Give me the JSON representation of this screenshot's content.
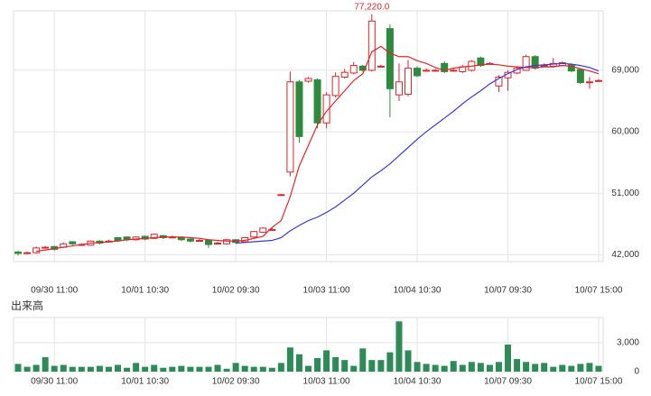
{
  "chart_data": [
    {
      "type": "candlestick",
      "categories": [
        null,
        null,
        null,
        null,
        "09/30 11:00",
        null,
        null,
        null,
        null,
        null,
        null,
        null,
        null,
        null,
        "10/01 10:30",
        null,
        null,
        null,
        null,
        null,
        null,
        null,
        null,
        null,
        "10/02 09:30",
        null,
        null,
        null,
        null,
        null,
        null,
        null,
        null,
        null,
        "10/03 11:00",
        null,
        null,
        null,
        null,
        null,
        null,
        null,
        null,
        null,
        "10/04 10:30",
        null,
        null,
        null,
        null,
        null,
        null,
        null,
        null,
        null,
        "10/07 09:30",
        null,
        null,
        null,
        null,
        null,
        null,
        null,
        null,
        null,
        "10/07 15:00"
      ],
      "open": [
        42400,
        42300,
        42300,
        43000,
        43200,
        43100,
        43900,
        43500,
        43400,
        44000,
        44000,
        44500,
        44600,
        44200,
        44700,
        44400,
        44800,
        44600,
        44500,
        44300,
        44100,
        44100,
        43700,
        43600,
        44200,
        43900,
        44600,
        45300,
        45700,
        50800,
        54100,
        67300,
        67400,
        67600,
        61300,
        65300,
        68000,
        68600,
        69600,
        69000,
        69600,
        75100,
        65400,
        65500,
        69300,
        69000,
        69000,
        70000,
        69000,
        68800,
        69000,
        70800,
        70000,
        66700,
        67900,
        68600,
        69000,
        71000,
        69700,
        69600,
        69700,
        69800,
        69100,
        67300,
        67500
      ],
      "high": [
        42600,
        42500,
        43200,
        43300,
        43300,
        43800,
        44000,
        43700,
        44100,
        44100,
        44200,
        44600,
        44700,
        44700,
        44800,
        45100,
        44900,
        44800,
        44600,
        44400,
        44300,
        44200,
        43900,
        44300,
        44300,
        44600,
        45500,
        46000,
        45900,
        50900,
        68800,
        67600,
        68000,
        67800,
        65800,
        68700,
        69200,
        70200,
        69800,
        77220,
        69800,
        75700,
        70000,
        70500,
        69600,
        69300,
        69200,
        70300,
        69200,
        69800,
        70500,
        71000,
        70200,
        68300,
        69000,
        69600,
        71300,
        71200,
        70000,
        70800,
        70300,
        70000,
        69300,
        68000,
        67700
      ],
      "low": [
        41900,
        42100,
        42200,
        42900,
        42600,
        43000,
        43400,
        43300,
        43300,
        43500,
        43800,
        43900,
        44000,
        44100,
        44100,
        44300,
        44300,
        44400,
        44000,
        43800,
        43900,
        43000,
        43500,
        43500,
        43600,
        43800,
        44500,
        45200,
        45500,
        50700,
        53500,
        58400,
        67200,
        60500,
        60500,
        65000,
        67800,
        68400,
        68800,
        68800,
        69400,
        62100,
        64500,
        65200,
        68000,
        68800,
        68800,
        68600,
        68800,
        68600,
        68800,
        69500,
        69800,
        65800,
        66000,
        68400,
        68900,
        69100,
        69500,
        69400,
        69600,
        68700,
        67000,
        66300,
        67300
      ],
      "close": [
        42200,
        42300,
        43000,
        43100,
        42800,
        43600,
        43600,
        43500,
        44000,
        43700,
        44000,
        44100,
        44200,
        44600,
        44300,
        45000,
        44500,
        44600,
        44200,
        44000,
        44100,
        43500,
        43700,
        44200,
        43800,
        44500,
        45400,
        45900,
        45700,
        50800,
        67300,
        59300,
        67800,
        61300,
        65400,
        68100,
        68700,
        69700,
        69000,
        76200,
        69600,
        66300,
        67300,
        69300,
        68200,
        69000,
        69000,
        68800,
        69000,
        69500,
        70300,
        69700,
        70000,
        68000,
        68700,
        69300,
        71000,
        69300,
        69700,
        70000,
        70100,
        68900,
        67200,
        67300,
        67500
      ],
      "up_color": "#d7262c",
      "down_color": "#2e8b3e",
      "series": [
        {
          "color": "#e0262c",
          "values": [
            null,
            null,
            42500,
            42700,
            42900,
            43100,
            43300,
            43500,
            43700,
            43800,
            43900,
            44000,
            44200,
            44300,
            44400,
            44500,
            44600,
            44600,
            44600,
            44500,
            44400,
            44200,
            44100,
            44000,
            44000,
            44100,
            44400,
            44700,
            46000,
            47000,
            50500,
            55000,
            58000,
            61000,
            63000,
            64500,
            66000,
            67500,
            68500,
            71700,
            72500,
            71500,
            71000,
            71000,
            70400,
            70000,
            69400,
            69000,
            69300,
            69500,
            69600,
            69800,
            69900,
            69800,
            69600,
            69500,
            69400,
            69400,
            69500,
            69500,
            69700,
            69600,
            69200,
            68900,
            68500
          ]
        },
        {
          "color": "#3b3bd6",
          "values": [
            null,
            null,
            null,
            null,
            null,
            null,
            null,
            null,
            null,
            null,
            null,
            null,
            null,
            null,
            null,
            null,
            null,
            null,
            null,
            null,
            null,
            null,
            null,
            null,
            43700,
            43800,
            43900,
            44000,
            44100,
            44500,
            45500,
            46300,
            47000,
            47500,
            48200,
            49000,
            50000,
            51000,
            52200,
            53400,
            54300,
            55300,
            56500,
            57700,
            58900,
            60000,
            61000,
            62000,
            63000,
            64100,
            65100,
            66000,
            67000,
            67800,
            68500,
            69100,
            69500,
            69700,
            69800,
            69900,
            70000,
            69900,
            69700,
            69400,
            68900
          ]
        }
      ],
      "annotation": {
        "value": 77220,
        "label": "77,220.0"
      },
      "ylim": [
        41000,
        77700
      ],
      "yticks": [
        {
          "value": 42000,
          "label": "42,000"
        },
        {
          "value": 51000,
          "label": "51,000"
        },
        {
          "value": 60000,
          "label": "60,000"
        },
        {
          "value": 69000,
          "label": "69,000"
        }
      ],
      "grid": true
    },
    {
      "type": "bar",
      "title": "出来高",
      "categories": [
        null,
        null,
        null,
        null,
        "09/30 11:00",
        null,
        null,
        null,
        null,
        null,
        null,
        null,
        null,
        null,
        "10/01 10:30",
        null,
        null,
        null,
        null,
        null,
        null,
        null,
        null,
        null,
        "10/02 09:30",
        null,
        null,
        null,
        null,
        null,
        null,
        null,
        null,
        null,
        "10/03 11:00",
        null,
        null,
        null,
        null,
        null,
        null,
        null,
        null,
        null,
        "10/04 10:30",
        null,
        null,
        null,
        null,
        null,
        null,
        null,
        null,
        null,
        "10/07 09:30",
        null,
        null,
        null,
        null,
        null,
        null,
        null,
        null,
        null,
        "10/07 15:00"
      ],
      "values": [
        800,
        500,
        700,
        1500,
        600,
        700,
        500,
        500,
        500,
        600,
        500,
        700,
        400,
        900,
        500,
        700,
        400,
        500,
        600,
        500,
        500,
        500,
        700,
        300,
        900,
        600,
        500,
        500,
        400,
        900,
        2500,
        1800,
        600,
        1400,
        2200,
        1500,
        1200,
        600,
        2400,
        1200,
        1200,
        2000,
        5200,
        2200,
        1000,
        800,
        700,
        600,
        1100,
        700,
        1000,
        900,
        700,
        1000,
        2800,
        1300,
        1000,
        800,
        900,
        500,
        700,
        600,
        800,
        900,
        600
      ],
      "color": "#2e8b57",
      "ylim": [
        0,
        5600
      ],
      "yticks": [
        0,
        {
          "value": 3000,
          "label": "3,000"
        }
      ],
      "grid": true
    }
  ]
}
